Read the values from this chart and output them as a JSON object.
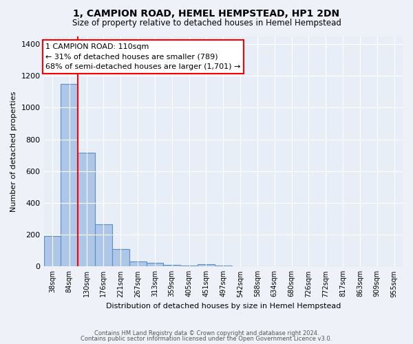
{
  "title1": "1, CAMPION ROAD, HEMEL HEMPSTEAD, HP1 2DN",
  "title2": "Size of property relative to detached houses in Hemel Hempstead",
  "xlabel": "Distribution of detached houses by size in Hemel Hempstead",
  "ylabel": "Number of detached properties",
  "categories": [
    "38sqm",
    "84sqm",
    "130sqm",
    "176sqm",
    "221sqm",
    "267sqm",
    "313sqm",
    "359sqm",
    "405sqm",
    "451sqm",
    "497sqm",
    "542sqm",
    "588sqm",
    "634sqm",
    "680sqm",
    "726sqm",
    "772sqm",
    "817sqm",
    "863sqm",
    "909sqm",
    "955sqm"
  ],
  "values": [
    193,
    1150,
    715,
    265,
    108,
    30,
    25,
    12,
    5,
    14,
    5,
    0,
    0,
    0,
    0,
    0,
    0,
    0,
    0,
    0,
    0
  ],
  "bar_color": "#aec6e8",
  "bar_edge_color": "#5a8fc2",
  "property_line_x": 1.5,
  "annotation_text": "1 CAMPION ROAD: 110sqm\n← 31% of detached houses are smaller (789)\n68% of semi-detached houses are larger (1,701) →",
  "annotation_box_color": "white",
  "annotation_box_edge_color": "red",
  "vline_color": "red",
  "ylim": [
    0,
    1450
  ],
  "yticks": [
    0,
    200,
    400,
    600,
    800,
    1000,
    1200,
    1400
  ],
  "footer1": "Contains HM Land Registry data © Crown copyright and database right 2024.",
  "footer2": "Contains public sector information licensed under the Open Government Licence v3.0.",
  "bg_color": "#eef2f8",
  "plot_bg_color": "#e8eef8"
}
